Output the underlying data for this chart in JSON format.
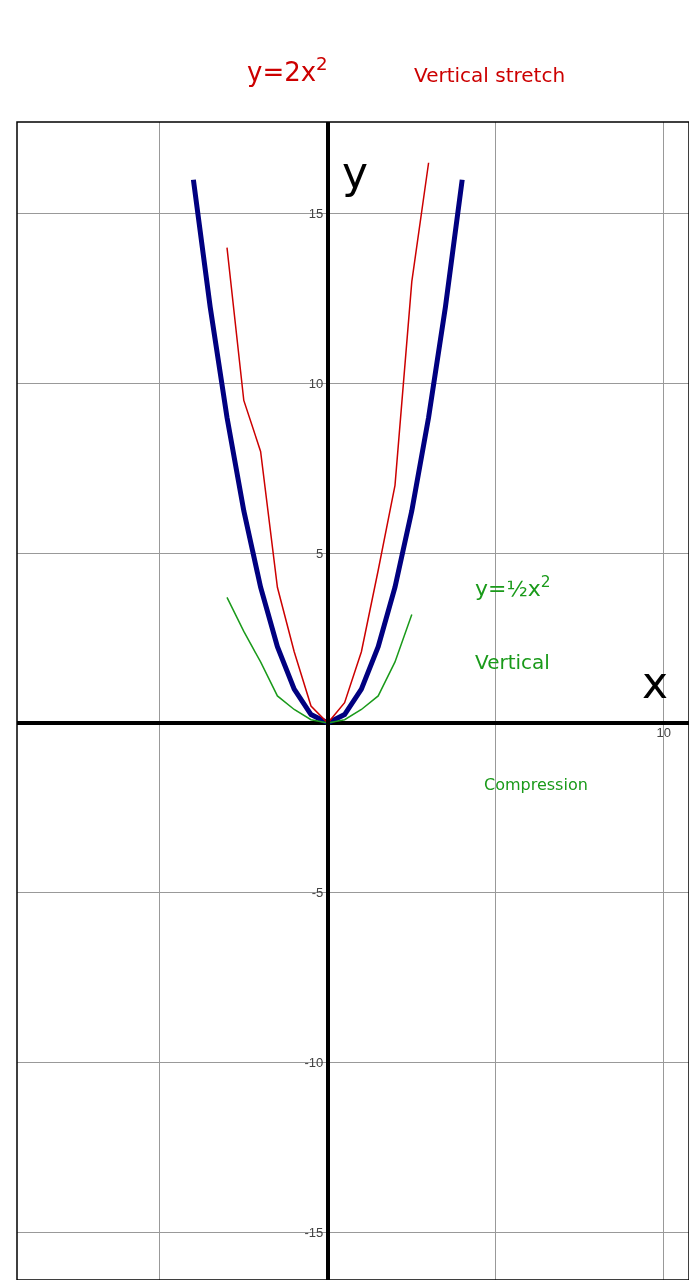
{
  "chart_data": {
    "type": "line",
    "xlabel": "x",
    "ylabel": "y",
    "annotations": [
      "y=2x$^{2}$",
      "Vertical stretch",
      "y=½x$^{2}$",
      "Vertical",
      "Compression"
    ],
    "categories": [
      null,
      null,
      null,
      null,
      null,
      null,
      null,
      null,
      null,
      null,
      null,
      null,
      null,
      null,
      null,
      null,
      null,
      null,
      null,
      null,
      null,
      null,
      null,
      null,
      null,
      null,
      null,
      null,
      null,
      null,
      null,
      null,
      null,
      null,
      null,
      null,
      null,
      null,
      "10",
      null
    ],
    "ylim": [
      -16.4,
      17.7
    ],
    "yticks": [
      -15,
      -10,
      -5,
      5,
      10,
      15
    ],
    "grid": true,
    "line_style": "solid",
    "marker": "none",
    "series": [
      {
        "color": "#000080",
        "values": [
          null,
          null,
          null,
          null,
          null,
          null,
          null,
          null,
          null,
          null,
          16,
          12.25,
          9,
          6.25,
          4,
          2.25,
          1,
          0.25,
          0,
          0.25,
          1,
          2.25,
          4,
          6.25,
          9,
          12.25,
          16,
          null,
          null,
          null,
          null,
          null,
          null,
          null,
          null,
          null,
          null,
          null,
          null,
          null
        ]
      },
      {
        "color": "#cc0000",
        "values": [
          null,
          null,
          null,
          null,
          null,
          null,
          null,
          null,
          null,
          null,
          null,
          null,
          14,
          9.5,
          8,
          4,
          2.1,
          0.5,
          0,
          0.6,
          2.1,
          4.5,
          7,
          13,
          16.5,
          null,
          null,
          null,
          null,
          null,
          null,
          null,
          null,
          null,
          null,
          null,
          null,
          null,
          null,
          null
        ]
      },
      {
        "color": "#1a9a1a",
        "values": [
          null,
          null,
          null,
          null,
          null,
          null,
          null,
          null,
          null,
          null,
          null,
          null,
          3.7,
          2.7,
          1.8,
          0.8,
          0.4,
          0.1,
          0,
          0.1,
          0.4,
          0.8,
          1.8,
          3.2,
          null,
          null,
          null,
          null,
          null,
          null,
          null,
          null,
          null,
          null,
          null,
          null,
          null,
          null,
          null,
          null
        ]
      }
    ]
  }
}
